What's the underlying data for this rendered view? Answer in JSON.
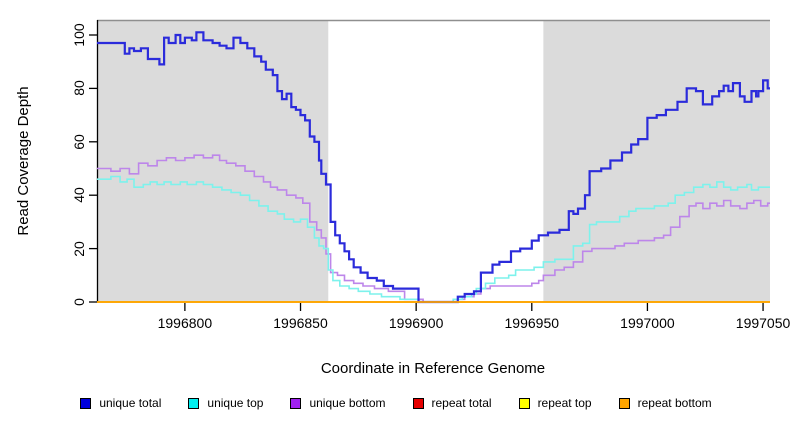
{
  "chart_data": {
    "type": "line",
    "step": "after",
    "title": "",
    "xlabel": "Coordinate in Reference Genome",
    "ylabel": "Read Coverage Depth",
    "xlim": [
      1996762,
      1997053
    ],
    "ylim": [
      0,
      100
    ],
    "x_ticks": [
      1996800,
      1996850,
      1996900,
      1996950,
      1997000,
      1997050
    ],
    "y_ticks": [
      0,
      20,
      40,
      60,
      80,
      100
    ],
    "grid": false,
    "legend_position": "bottom-horizontal",
    "plot_background": "#ffffff",
    "shaded_region_color": "#dbdbdb",
    "shaded_regions": [
      {
        "name": "left-gray-region",
        "start": 1996762,
        "end": 1996862
      },
      {
        "name": "right-gray-region",
        "start": 1996955,
        "end": 1997053
      }
    ],
    "white_gap_region": {
      "start": 1996862,
      "end": 1996955
    },
    "top_border_color": "#8f8f8f",
    "axis_color": "#000000",
    "series": [
      {
        "name": "repeat total",
        "line_color": "#e60000",
        "legend_color": "#e60000",
        "width": 1.5,
        "points": [
          [
            1996762,
            0
          ],
          [
            1997053,
            0
          ]
        ]
      },
      {
        "name": "repeat top",
        "line_color": "#ffff00",
        "legend_color": "#ffff00",
        "width": 1.5,
        "points": [
          [
            1996762,
            0
          ],
          [
            1997053,
            0
          ]
        ]
      },
      {
        "name": "unique bottom",
        "line_color": "#bd86ea",
        "legend_color": "#a020f0",
        "width": 1.6,
        "points": [
          [
            1996762,
            50
          ],
          [
            1996768,
            49
          ],
          [
            1996772,
            50
          ],
          [
            1996776,
            48
          ],
          [
            1996780,
            52
          ],
          [
            1996784,
            51
          ],
          [
            1996788,
            53
          ],
          [
            1996792,
            54
          ],
          [
            1996796,
            53
          ],
          [
            1996800,
            54
          ],
          [
            1996804,
            55
          ],
          [
            1996808,
            54
          ],
          [
            1996812,
            55
          ],
          [
            1996815,
            53
          ],
          [
            1996818,
            52
          ],
          [
            1996822,
            51
          ],
          [
            1996826,
            49
          ],
          [
            1996830,
            47
          ],
          [
            1996834,
            45
          ],
          [
            1996837,
            43
          ],
          [
            1996840,
            42
          ],
          [
            1996844,
            40
          ],
          [
            1996848,
            39
          ],
          [
            1996851,
            37
          ],
          [
            1996854,
            30
          ],
          [
            1996857,
            27
          ],
          [
            1996859,
            24
          ],
          [
            1996861,
            18
          ],
          [
            1996863,
            11
          ],
          [
            1996866,
            10
          ],
          [
            1996869,
            8
          ],
          [
            1996873,
            7
          ],
          [
            1996877,
            6
          ],
          [
            1996882,
            5
          ],
          [
            1996888,
            4
          ],
          [
            1996895,
            1
          ],
          [
            1996903,
            0
          ],
          [
            1996918,
            1
          ],
          [
            1996921,
            2
          ],
          [
            1996925,
            3
          ],
          [
            1996928,
            5
          ],
          [
            1996932,
            6
          ],
          [
            1996945,
            6
          ],
          [
            1996950,
            7
          ],
          [
            1996953,
            8
          ],
          [
            1996955,
            10
          ],
          [
            1996960,
            12
          ],
          [
            1996964,
            13
          ],
          [
            1996968,
            15
          ],
          [
            1996972,
            19
          ],
          [
            1996976,
            20
          ],
          [
            1996986,
            21
          ],
          [
            1996990,
            22
          ],
          [
            1996996,
            23
          ],
          [
            1997003,
            24
          ],
          [
            1997007,
            25
          ],
          [
            1997010,
            28
          ],
          [
            1997014,
            32
          ],
          [
            1997018,
            36
          ],
          [
            1997021,
            37
          ],
          [
            1997024,
            35
          ],
          [
            1997027,
            37
          ],
          [
            1997030,
            36
          ],
          [
            1997033,
            38
          ],
          [
            1997036,
            36
          ],
          [
            1997040,
            35
          ],
          [
            1997043,
            37
          ],
          [
            1997046,
            38
          ],
          [
            1997049,
            36
          ],
          [
            1997052,
            37
          ]
        ]
      },
      {
        "name": "unique top",
        "line_color": "#7df2ec",
        "legend_color": "#00eeee",
        "width": 1.6,
        "points": [
          [
            1996762,
            46
          ],
          [
            1996768,
            47
          ],
          [
            1996772,
            45
          ],
          [
            1996775,
            46
          ],
          [
            1996778,
            43
          ],
          [
            1996782,
            44
          ],
          [
            1996785,
            45
          ],
          [
            1996788,
            44
          ],
          [
            1996791,
            45
          ],
          [
            1996794,
            44
          ],
          [
            1996798,
            45
          ],
          [
            1996801,
            44
          ],
          [
            1996805,
            45
          ],
          [
            1996808,
            44
          ],
          [
            1996812,
            43
          ],
          [
            1996816,
            42
          ],
          [
            1996820,
            41
          ],
          [
            1996824,
            40
          ],
          [
            1996828,
            38
          ],
          [
            1996832,
            36
          ],
          [
            1996836,
            34
          ],
          [
            1996840,
            33
          ],
          [
            1996843,
            31
          ],
          [
            1996847,
            30
          ],
          [
            1996850,
            31
          ],
          [
            1996853,
            28
          ],
          [
            1996856,
            24
          ],
          [
            1996858,
            21
          ],
          [
            1996860,
            20
          ],
          [
            1996862,
            12
          ],
          [
            1996864,
            8
          ],
          [
            1996867,
            6
          ],
          [
            1996871,
            5
          ],
          [
            1996875,
            4
          ],
          [
            1996880,
            3
          ],
          [
            1996885,
            2
          ],
          [
            1996893,
            1
          ],
          [
            1996901,
            0
          ],
          [
            1996916,
            1
          ],
          [
            1996920,
            2
          ],
          [
            1996924,
            3
          ],
          [
            1996926,
            5
          ],
          [
            1996930,
            7
          ],
          [
            1996934,
            9
          ],
          [
            1996940,
            10
          ],
          [
            1996943,
            12
          ],
          [
            1996951,
            13
          ],
          [
            1996955,
            15
          ],
          [
            1996960,
            16
          ],
          [
            1996965,
            16
          ],
          [
            1996968,
            21
          ],
          [
            1996972,
            22
          ],
          [
            1996975,
            29
          ],
          [
            1996978,
            30
          ],
          [
            1996988,
            32
          ],
          [
            1996992,
            34
          ],
          [
            1996995,
            35
          ],
          [
            1997003,
            36
          ],
          [
            1997009,
            37
          ],
          [
            1997012,
            40
          ],
          [
            1997016,
            41
          ],
          [
            1997020,
            43
          ],
          [
            1997024,
            44
          ],
          [
            1997027,
            43
          ],
          [
            1997030,
            45
          ],
          [
            1997033,
            43
          ],
          [
            1997036,
            42
          ],
          [
            1997039,
            43
          ],
          [
            1997043,
            44
          ],
          [
            1997045,
            42
          ],
          [
            1997048,
            43
          ],
          [
            1997052,
            43
          ]
        ]
      },
      {
        "name": "unique total",
        "line_color": "#2b2bdb",
        "legend_color": "#0000dd",
        "width": 2.2,
        "points": [
          [
            1996762,
            97
          ],
          [
            1996774,
            93
          ],
          [
            1996776,
            95
          ],
          [
            1996778,
            94
          ],
          [
            1996781,
            95
          ],
          [
            1996784,
            91
          ],
          [
            1996789,
            89
          ],
          [
            1996791,
            99
          ],
          [
            1996793,
            97
          ],
          [
            1996796,
            100
          ],
          [
            1996798,
            97
          ],
          [
            1996800,
            99
          ],
          [
            1996803,
            98
          ],
          [
            1996805,
            101
          ],
          [
            1996808,
            98
          ],
          [
            1996812,
            97
          ],
          [
            1996815,
            96
          ],
          [
            1996818,
            95
          ],
          [
            1996821,
            99
          ],
          [
            1996824,
            97
          ],
          [
            1996827,
            95
          ],
          [
            1996830,
            92
          ],
          [
            1996833,
            90
          ],
          [
            1996835,
            87
          ],
          [
            1996838,
            85
          ],
          [
            1996840,
            79
          ],
          [
            1996842,
            76
          ],
          [
            1996844,
            78
          ],
          [
            1996846,
            73
          ],
          [
            1996848,
            72
          ],
          [
            1996850,
            70
          ],
          [
            1996852,
            68
          ],
          [
            1996854,
            62
          ],
          [
            1996856,
            60
          ],
          [
            1996858,
            53
          ],
          [
            1996859,
            48
          ],
          [
            1996861,
            44
          ],
          [
            1996863,
            30
          ],
          [
            1996865,
            25
          ],
          [
            1996867,
            22
          ],
          [
            1996869,
            19
          ],
          [
            1996871,
            16
          ],
          [
            1996873,
            13
          ],
          [
            1996876,
            11
          ],
          [
            1996879,
            9
          ],
          [
            1996883,
            8
          ],
          [
            1996886,
            6
          ],
          [
            1996890,
            5
          ],
          [
            1996901,
            0
          ],
          [
            1996918,
            2
          ],
          [
            1996921,
            3
          ],
          [
            1996925,
            4
          ],
          [
            1996928,
            11
          ],
          [
            1996933,
            14
          ],
          [
            1996936,
            15
          ],
          [
            1996941,
            19
          ],
          [
            1996945,
            20
          ],
          [
            1996950,
            23
          ],
          [
            1996953,
            25
          ],
          [
            1996957,
            26
          ],
          [
            1996962,
            27
          ],
          [
            1996966,
            34
          ],
          [
            1996968,
            33
          ],
          [
            1996970,
            35
          ],
          [
            1996973,
            40
          ],
          [
            1996975,
            49
          ],
          [
            1996980,
            50
          ],
          [
            1996984,
            53
          ],
          [
            1996989,
            56
          ],
          [
            1996993,
            59
          ],
          [
            1996996,
            61
          ],
          [
            1997000,
            69
          ],
          [
            1997004,
            70
          ],
          [
            1997008,
            72
          ],
          [
            1997013,
            75
          ],
          [
            1997017,
            80
          ],
          [
            1997021,
            79
          ],
          [
            1997024,
            74
          ],
          [
            1997028,
            77
          ],
          [
            1997031,
            79
          ],
          [
            1997033,
            81
          ],
          [
            1997035,
            79
          ],
          [
            1997037,
            82
          ],
          [
            1997040,
            77
          ],
          [
            1997042,
            75
          ],
          [
            1997045,
            79
          ],
          [
            1997047,
            77
          ],
          [
            1997048,
            79
          ],
          [
            1997050,
            83
          ],
          [
            1997052,
            80
          ]
        ]
      },
      {
        "name": "repeat bottom",
        "line_color": "#ffa500",
        "legend_color": "#ffa500",
        "width": 1.8,
        "points": [
          [
            1996762,
            0
          ],
          [
            1997053,
            0
          ]
        ]
      }
    ],
    "legend_entries": [
      {
        "label": "unique total",
        "color": "#0000dd"
      },
      {
        "label": "unique top",
        "color": "#00eeee"
      },
      {
        "label": "unique bottom",
        "color": "#a020f0"
      },
      {
        "label": "repeat total",
        "color": "#e60000"
      },
      {
        "label": "repeat top",
        "color": "#ffff00"
      },
      {
        "label": "repeat bottom",
        "color": "#ffa500"
      }
    ]
  }
}
